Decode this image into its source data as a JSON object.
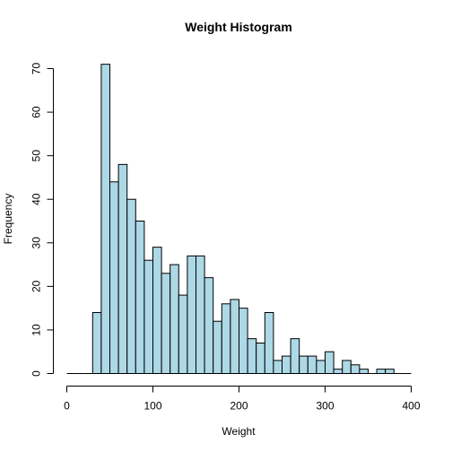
{
  "chart_data": {
    "type": "bar",
    "title": "Weight Histogram",
    "xlabel": "Weight",
    "ylabel": "Frequency",
    "bin_width": 10,
    "bins_start": [
      0,
      10,
      20,
      30,
      40,
      50,
      60,
      70,
      80,
      90,
      100,
      110,
      120,
      130,
      140,
      150,
      160,
      170,
      180,
      190,
      200,
      210,
      220,
      230,
      240,
      250,
      260,
      270,
      280,
      290,
      300,
      310,
      320,
      330,
      340,
      350,
      360,
      370,
      380,
      390
    ],
    "values": [
      0,
      0,
      0,
      14,
      71,
      44,
      48,
      40,
      35,
      26,
      29,
      23,
      25,
      18,
      27,
      27,
      22,
      12,
      16,
      17,
      15,
      8,
      7,
      14,
      3,
      4,
      8,
      4,
      4,
      3,
      5,
      1,
      3,
      2,
      1,
      0,
      1,
      1,
      0,
      0
    ],
    "xlim": [
      0,
      400
    ],
    "ylim": [
      0,
      70
    ],
    "x_ticks": [
      "0",
      "100",
      "200",
      "300",
      "400"
    ],
    "y_ticks": [
      "0",
      "10",
      "20",
      "30",
      "40",
      "50",
      "60",
      "70"
    ],
    "grid": false,
    "colors": {
      "bar_fill": "#add8e6",
      "bar_stroke": "#000000"
    }
  }
}
